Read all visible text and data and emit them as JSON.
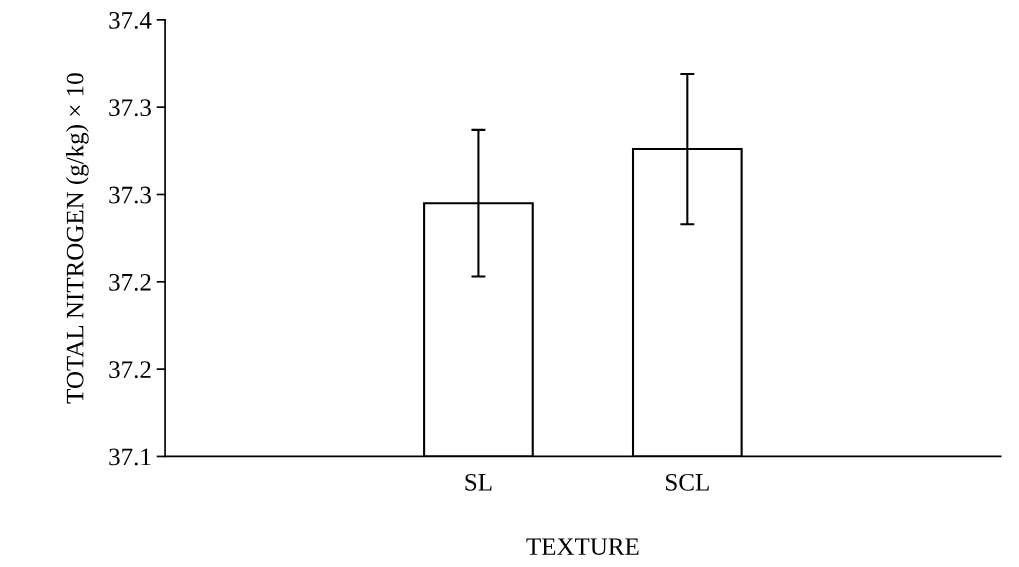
{
  "chart_data": {
    "type": "bar",
    "xlabel": "TEXTURE",
    "ylabel": "TOTAL NITROGEN (g/kg) × 10",
    "categories": [
      null,
      "SL",
      "SCL",
      null
    ],
    "values": [
      null,
      37.245,
      37.276,
      null
    ],
    "errors": [
      null,
      0.042,
      0.043,
      null
    ],
    "color": "#ffffff",
    "ylim": [
      37.1,
      37.35
    ],
    "yticks": [
      {
        "value": 37.1,
        "label": "37.1"
      },
      {
        "value": 37.15,
        "label": "37.2"
      },
      {
        "value": 37.2,
        "label": "37.2"
      },
      {
        "value": 37.25,
        "label": "37.3"
      },
      {
        "value": 37.3,
        "label": "37.3"
      },
      {
        "value": 37.35,
        "label": "37.4"
      }
    ],
    "grid": false,
    "legend": false
  }
}
